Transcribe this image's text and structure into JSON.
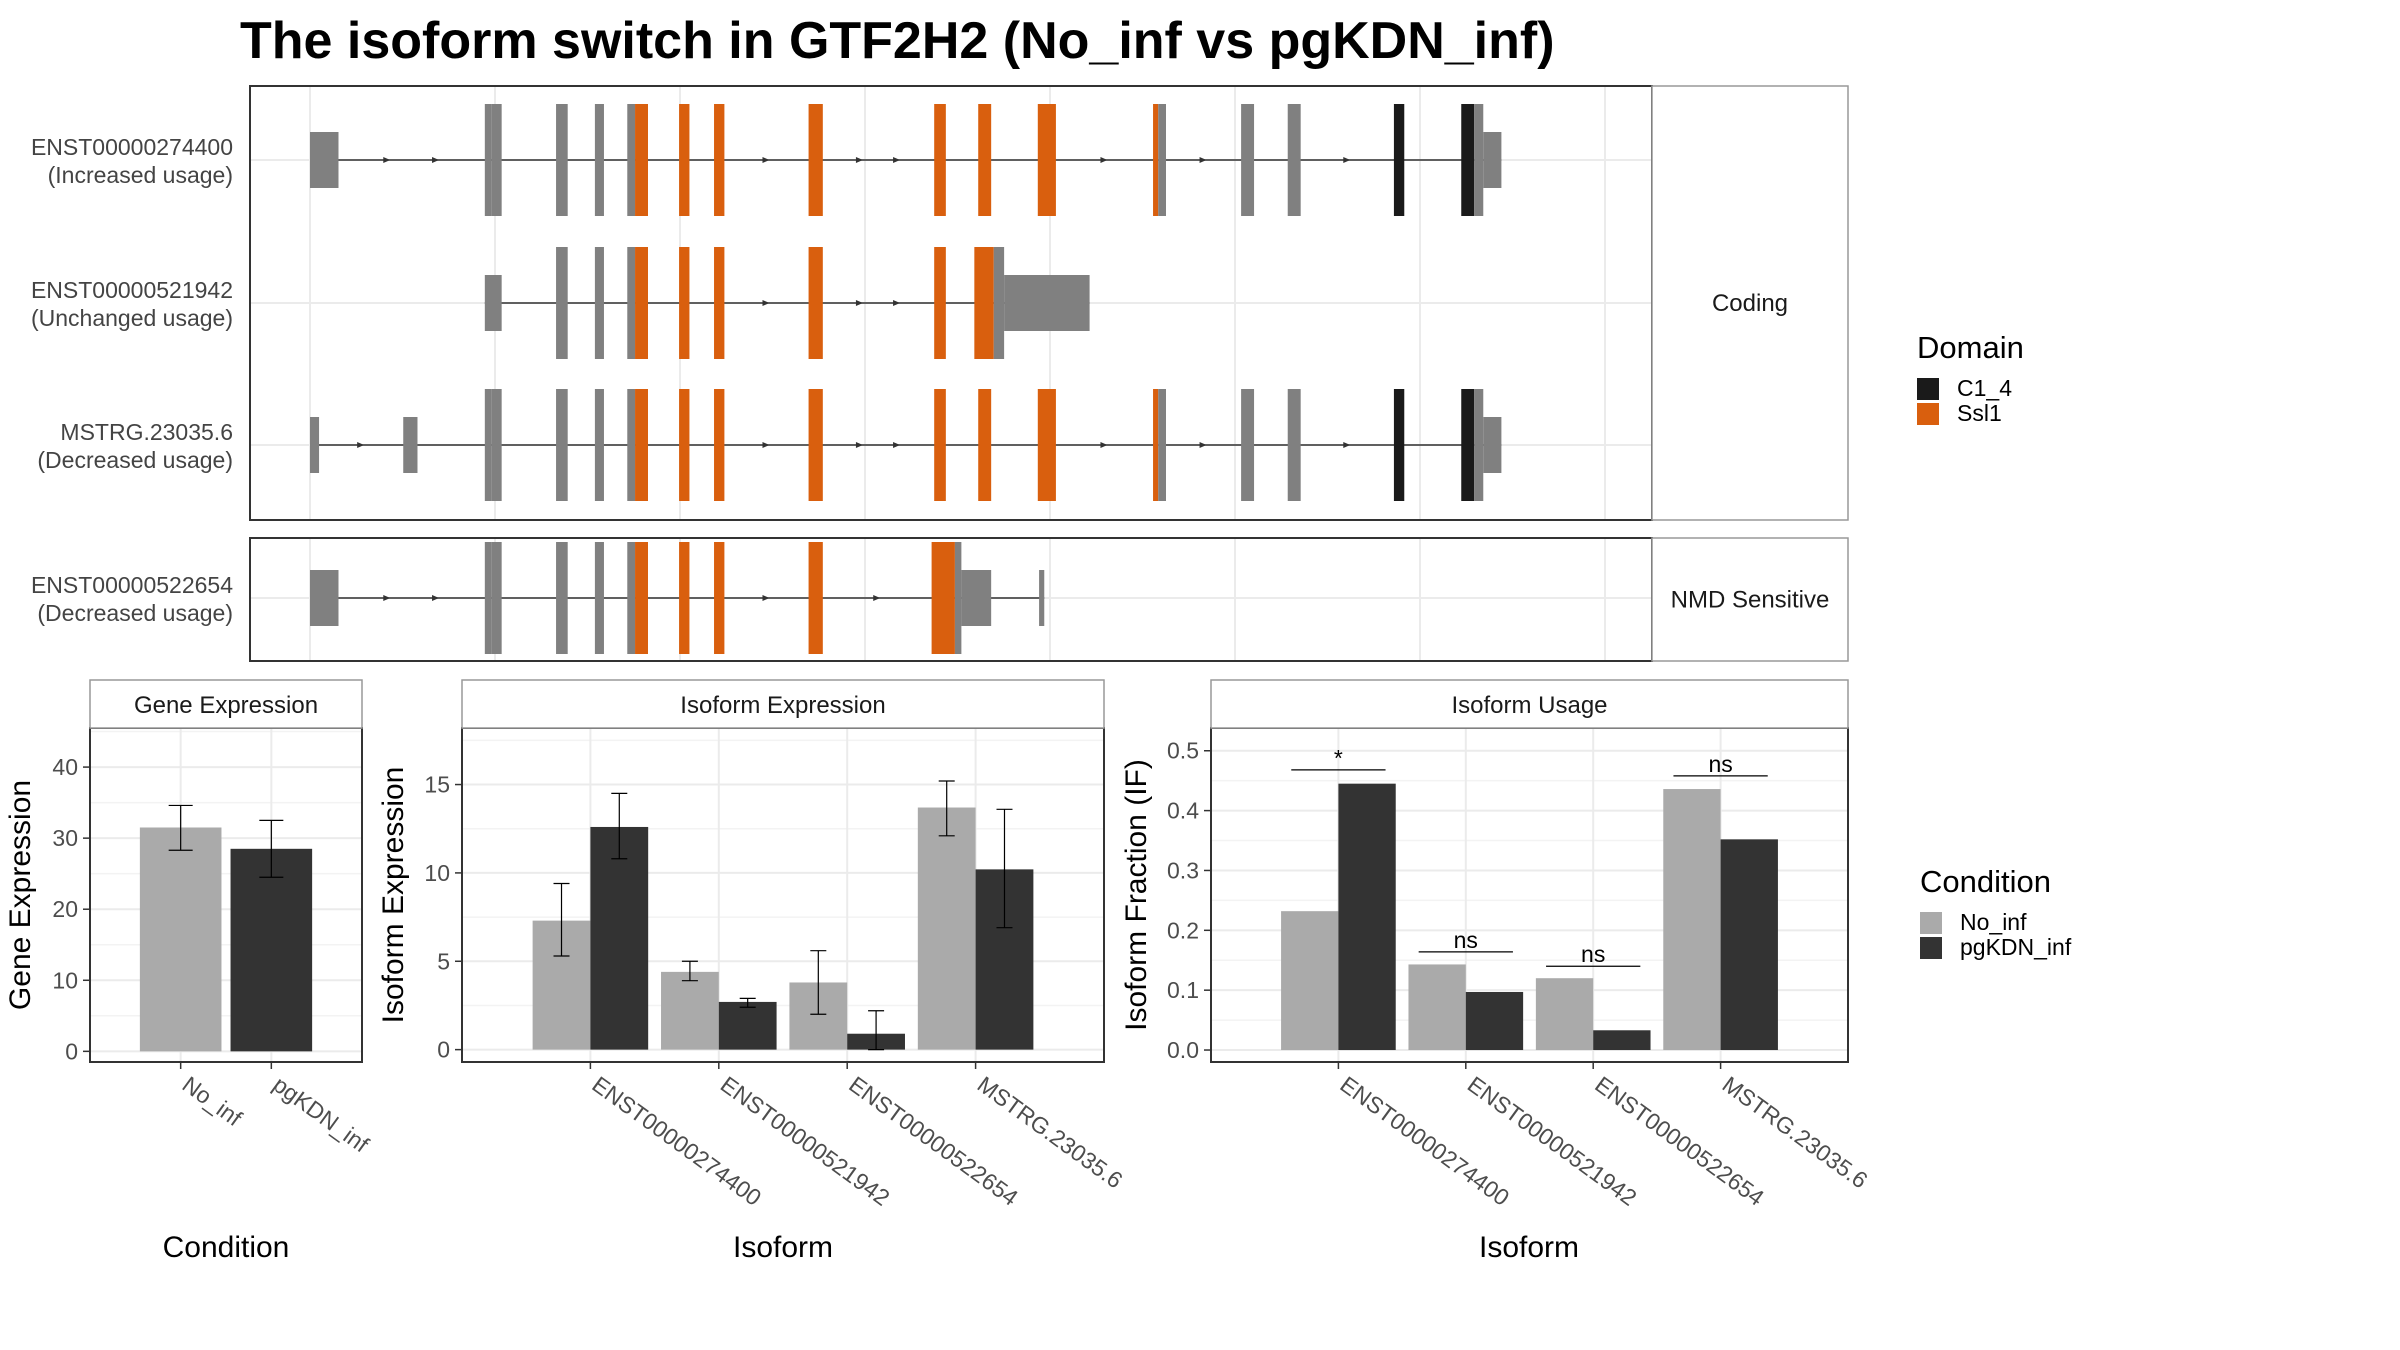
{
  "title": "The isoform switch in GTF2H2 (No_inf vs pgKDN_inf)",
  "colors": {
    "exon": "#808080",
    "domain_C1_4": "#1a1a1a",
    "domain_Ssl1": "#d95f0e",
    "no_inf": "#aaaaaa",
    "pgkdn_inf": "#333333",
    "grid": "#ebebeb",
    "panel_border": "#333333",
    "strip_border": "#999999"
  },
  "structure": {
    "coordinate_range": [
      0,
      1000
    ],
    "facets": [
      {
        "label": "Coding",
        "transcripts": [
          {
            "id": "ENST00000274400",
            "usage": "(Increased usage)",
            "span": [
              0,
              920
            ],
            "exons": [
              {
                "start": 0,
                "end": 22,
                "type": "utr",
                "domain": null
              },
              {
                "start": 135,
                "end": 140,
                "type": "cds",
                "domain": null
              },
              {
                "start": 140,
                "end": 148,
                "type": "cds",
                "domain": null
              },
              {
                "start": 190,
                "end": 199,
                "type": "cds",
                "domain": null
              },
              {
                "start": 220,
                "end": 227,
                "type": "cds",
                "domain": null
              },
              {
                "start": 245,
                "end": 251,
                "type": "cds",
                "domain": null
              },
              {
                "start": 251,
                "end": 261,
                "type": "cds",
                "domain": "Ssl1"
              },
              {
                "start": 285,
                "end": 293,
                "type": "cds",
                "domain": "Ssl1"
              },
              {
                "start": 312,
                "end": 320,
                "type": "cds",
                "domain": "Ssl1"
              },
              {
                "start": 385,
                "end": 396,
                "type": "cds",
                "domain": "Ssl1"
              },
              {
                "start": 482,
                "end": 491,
                "type": "cds",
                "domain": "Ssl1"
              },
              {
                "start": 516,
                "end": 526,
                "type": "cds",
                "domain": "Ssl1"
              },
              {
                "start": 562,
                "end": 576,
                "type": "cds",
                "domain": "Ssl1"
              },
              {
                "start": 651,
                "end": 655,
                "type": "cds",
                "domain": "Ssl1"
              },
              {
                "start": 655,
                "end": 661,
                "type": "cds",
                "domain": null
              },
              {
                "start": 719,
                "end": 729,
                "type": "cds",
                "domain": null
              },
              {
                "start": 755,
                "end": 765,
                "type": "cds",
                "domain": null
              },
              {
                "start": 837,
                "end": 845,
                "type": "cds",
                "domain": "C1_4"
              },
              {
                "start": 889,
                "end": 899,
                "type": "cds",
                "domain": "C1_4"
              },
              {
                "start": 899,
                "end": 906,
                "type": "cds",
                "domain": null
              },
              {
                "start": 906,
                "end": 920,
                "type": "utr",
                "domain": null
              }
            ]
          },
          {
            "id": "ENST00000521942",
            "usage": "(Unchanged usage)",
            "span": [
              135,
              602
            ],
            "exons": [
              {
                "start": 135,
                "end": 148,
                "type": "utr",
                "domain": null
              },
              {
                "start": 190,
                "end": 199,
                "type": "cds",
                "domain": null
              },
              {
                "start": 220,
                "end": 227,
                "type": "cds",
                "domain": null
              },
              {
                "start": 245,
                "end": 251,
                "type": "cds",
                "domain": null
              },
              {
                "start": 251,
                "end": 261,
                "type": "cds",
                "domain": "Ssl1"
              },
              {
                "start": 285,
                "end": 293,
                "type": "cds",
                "domain": "Ssl1"
              },
              {
                "start": 312,
                "end": 320,
                "type": "cds",
                "domain": "Ssl1"
              },
              {
                "start": 385,
                "end": 396,
                "type": "cds",
                "domain": "Ssl1"
              },
              {
                "start": 482,
                "end": 491,
                "type": "cds",
                "domain": "Ssl1"
              },
              {
                "start": 513,
                "end": 528,
                "type": "cds",
                "domain": "Ssl1"
              },
              {
                "start": 528,
                "end": 536,
                "type": "cds",
                "domain": null
              },
              {
                "start": 536,
                "end": 602,
                "type": "utr",
                "domain": null
              }
            ]
          },
          {
            "id": "MSTRG.23035.6",
            "usage": "(Decreased usage)",
            "span": [
              0,
              920
            ],
            "exons": [
              {
                "start": 0,
                "end": 7,
                "type": "utr",
                "domain": null
              },
              {
                "start": 72,
                "end": 83,
                "type": "utr",
                "domain": null
              },
              {
                "start": 135,
                "end": 140,
                "type": "cds",
                "domain": null
              },
              {
                "start": 140,
                "end": 148,
                "type": "cds",
                "domain": null
              },
              {
                "start": 190,
                "end": 199,
                "type": "cds",
                "domain": null
              },
              {
                "start": 220,
                "end": 227,
                "type": "cds",
                "domain": null
              },
              {
                "start": 245,
                "end": 251,
                "type": "cds",
                "domain": null
              },
              {
                "start": 251,
                "end": 261,
                "type": "cds",
                "domain": "Ssl1"
              },
              {
                "start": 285,
                "end": 293,
                "type": "cds",
                "domain": "Ssl1"
              },
              {
                "start": 312,
                "end": 320,
                "type": "cds",
                "domain": "Ssl1"
              },
              {
                "start": 385,
                "end": 396,
                "type": "cds",
                "domain": "Ssl1"
              },
              {
                "start": 482,
                "end": 491,
                "type": "cds",
                "domain": "Ssl1"
              },
              {
                "start": 516,
                "end": 526,
                "type": "cds",
                "domain": "Ssl1"
              },
              {
                "start": 562,
                "end": 576,
                "type": "cds",
                "domain": "Ssl1"
              },
              {
                "start": 651,
                "end": 655,
                "type": "cds",
                "domain": "Ssl1"
              },
              {
                "start": 655,
                "end": 661,
                "type": "cds",
                "domain": null
              },
              {
                "start": 719,
                "end": 729,
                "type": "cds",
                "domain": null
              },
              {
                "start": 755,
                "end": 765,
                "type": "cds",
                "domain": null
              },
              {
                "start": 837,
                "end": 845,
                "type": "cds",
                "domain": "C1_4"
              },
              {
                "start": 889,
                "end": 899,
                "type": "cds",
                "domain": "C1_4"
              },
              {
                "start": 899,
                "end": 906,
                "type": "cds",
                "domain": null
              },
              {
                "start": 906,
                "end": 920,
                "type": "utr",
                "domain": null
              }
            ]
          }
        ]
      },
      {
        "label": "NMD Sensitive",
        "transcripts": [
          {
            "id": "ENST00000522654",
            "usage": "(Decreased usage)",
            "span": [
              0,
              567
            ],
            "exons": [
              {
                "start": 0,
                "end": 22,
                "type": "utr",
                "domain": null
              },
              {
                "start": 135,
                "end": 140,
                "type": "cds",
                "domain": null
              },
              {
                "start": 140,
                "end": 148,
                "type": "cds",
                "domain": null
              },
              {
                "start": 190,
                "end": 199,
                "type": "cds",
                "domain": null
              },
              {
                "start": 220,
                "end": 227,
                "type": "cds",
                "domain": null
              },
              {
                "start": 245,
                "end": 251,
                "type": "cds",
                "domain": null
              },
              {
                "start": 251,
                "end": 261,
                "type": "cds",
                "domain": "Ssl1"
              },
              {
                "start": 285,
                "end": 293,
                "type": "cds",
                "domain": "Ssl1"
              },
              {
                "start": 312,
                "end": 320,
                "type": "cds",
                "domain": "Ssl1"
              },
              {
                "start": 385,
                "end": 396,
                "type": "cds",
                "domain": "Ssl1"
              },
              {
                "start": 480,
                "end": 498,
                "type": "cds",
                "domain": "Ssl1"
              },
              {
                "start": 498,
                "end": 503,
                "type": "cds",
                "domain": null
              },
              {
                "start": 503,
                "end": 526,
                "type": "utr",
                "domain": null
              },
              {
                "start": 563,
                "end": 567,
                "type": "utr",
                "domain": null
              }
            ]
          }
        ]
      }
    ]
  },
  "domain_legend": {
    "title": "Domain",
    "items": [
      {
        "label": "C1_4",
        "color": "#1a1a1a"
      },
      {
        "label": "Ssl1",
        "color": "#d95f0e"
      }
    ]
  },
  "condition_legend": {
    "title": "Condition",
    "items": [
      {
        "label": "No_inf",
        "color": "#aaaaaa"
      },
      {
        "label": "pgKDN_inf",
        "color": "#333333"
      }
    ]
  },
  "chart_data": [
    {
      "type": "bar",
      "title": "Gene Expression",
      "xlabel": "Condition",
      "ylabel": "Gene Expression",
      "categories": [
        "No_inf",
        "pgKDN_inf"
      ],
      "values": [
        31.5,
        28.5
      ],
      "errors": [
        [
          28.3,
          34.6
        ],
        [
          24.5,
          32.5
        ]
      ],
      "ylim": [
        -1.5,
        45.5
      ],
      "yticks": [
        0,
        10,
        20,
        30,
        40
      ]
    },
    {
      "type": "bar",
      "title": "Isoform Expression",
      "xlabel": "Isoform",
      "ylabel": "Isoform Expression",
      "categories": [
        "ENST00000274400",
        "ENST00000521942",
        "ENST00000522654",
        "MSTRG.23035.6"
      ],
      "series": [
        {
          "name": "No_inf",
          "values": [
            7.3,
            4.4,
            3.8,
            13.7
          ],
          "errors": [
            [
              5.3,
              9.4
            ],
            [
              3.9,
              5.0
            ],
            [
              2.0,
              5.6
            ],
            [
              12.1,
              15.2
            ]
          ]
        },
        {
          "name": "pgKDN_inf",
          "values": [
            12.6,
            2.7,
            0.9,
            10.2
          ],
          "errors": [
            [
              10.8,
              14.5
            ],
            [
              2.4,
              2.9
            ],
            [
              0.0,
              2.2
            ],
            [
              6.9,
              13.6
            ]
          ]
        }
      ],
      "ylim": [
        -0.7,
        18.2
      ],
      "yticks": [
        0,
        5,
        10,
        15
      ]
    },
    {
      "type": "bar",
      "title": "Isoform Usage",
      "xlabel": "Isoform",
      "ylabel": "Isoform Fraction (IF)",
      "categories": [
        "ENST00000274400",
        "ENST00000521942",
        "ENST00000522654",
        "MSTRG.23035.6"
      ],
      "series": [
        {
          "name": "No_inf",
          "values": [
            0.232,
            0.143,
            0.12,
            0.436
          ]
        },
        {
          "name": "pgKDN_inf",
          "values": [
            0.445,
            0.097,
            0.033,
            0.352
          ]
        }
      ],
      "significance": [
        "*",
        "ns",
        "ns",
        "ns"
      ],
      "significance_y": [
        0.468,
        0.164,
        0.14,
        0.458
      ],
      "ylim": [
        -0.02,
        0.538
      ],
      "yticks": [
        0.0,
        0.1,
        0.2,
        0.3,
        0.4,
        0.5
      ],
      "ytick_labels": [
        "0.0",
        "0.1",
        "0.2",
        "0.3",
        "0.4",
        "0.5"
      ]
    }
  ]
}
